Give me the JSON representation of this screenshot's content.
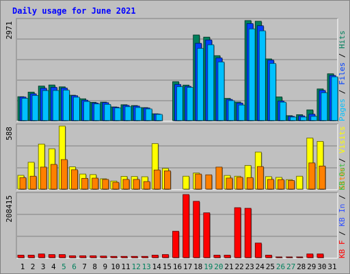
{
  "title": "Daily usage for June 2021",
  "colors": {
    "background": "#c0c0c0",
    "title": "#0000ff",
    "hits": "#00805c",
    "files": "#0040ff",
    "pages": "#00c0ff",
    "visits": "#ffff00",
    "sites": "#ff8000",
    "kbin": "#40c040",
    "kbout": "#3050ff",
    "kbf": "#ff0000"
  },
  "chart_data": [
    {
      "type": "bar",
      "panel": "hits-files-pages",
      "categories": [
        "1",
        "2",
        "3",
        "4",
        "5",
        "6",
        "7",
        "8",
        "9",
        "10",
        "11",
        "12",
        "13",
        "14",
        "15",
        "16",
        "17",
        "18",
        "19",
        "20",
        "21",
        "22",
        "23",
        "24",
        "25",
        "26",
        "27",
        "28",
        "29",
        "30",
        "31"
      ],
      "weekend_days": [
        "5",
        "6",
        "12",
        "13",
        "19",
        "20",
        "26",
        "27"
      ],
      "ymax_label": "2971",
      "ylim": [
        0,
        2971
      ],
      "legend": [
        {
          "text": "Pages",
          "color": "#00c0ff"
        },
        {
          "text": " / ",
          "color": "#000000"
        },
        {
          "text": "Files",
          "color": "#0040ff"
        },
        {
          "text": " / ",
          "color": "#000000"
        },
        {
          "text": "Hits",
          "color": "#00805c"
        }
      ],
      "series": [
        {
          "name": "Hits",
          "values": [
            709,
            845,
            1025,
            1057,
            1002,
            752,
            647,
            543,
            548,
            406,
            471,
            446,
            385,
            202,
            0,
            1156,
            1054,
            2543,
            2479,
            1928,
            659,
            550,
            2971,
            2951,
            1832,
            703,
            146,
            175,
            318,
            940,
            1390
          ]
        },
        {
          "name": "Files",
          "values": [
            698,
            795,
            960,
            986,
            966,
            739,
            606,
            522,
            532,
            396,
            451,
            430,
            373,
            196,
            0,
            1073,
            1016,
            2296,
            2394,
            1859,
            627,
            521,
            2881,
            2816,
            1795,
            580,
            126,
            139,
            190,
            897,
            1340
          ]
        },
        {
          "name": "Pages",
          "values": [
            660,
            745,
            890,
            893,
            903,
            694,
            566,
            494,
            481,
            374,
            412,
            388,
            346,
            184,
            0,
            1006,
            985,
            2143,
            2251,
            1740,
            592,
            462,
            2723,
            2665,
            1696,
            546,
            104,
            105,
            125,
            826,
            1300
          ]
        }
      ]
    },
    {
      "type": "bar",
      "panel": "visits-sites",
      "categories": [
        "1",
        "2",
        "3",
        "4",
        "5",
        "6",
        "7",
        "8",
        "9",
        "10",
        "11",
        "12",
        "13",
        "14",
        "15",
        "16",
        "17",
        "18",
        "19",
        "20",
        "21",
        "22",
        "23",
        "24",
        "25",
        "26",
        "27",
        "28",
        "29",
        "30",
        "31"
      ],
      "ymax_label": "588",
      "ylim": [
        0,
        588
      ],
      "legend": [
        {
          "text": "Sites",
          "color": "#ff8000"
        },
        {
          "text": " / ",
          "color": "#000000"
        },
        {
          "text": "Visits",
          "color": "#ffff00"
        }
      ],
      "series": [
        {
          "name": "Visits",
          "values": [
            128,
            250,
            420,
            376,
            588,
            207,
            140,
            135,
            96,
            75,
            118,
            117,
            115,
            424,
            193,
            0,
            120,
            150,
            0,
            0,
            127,
            120,
            220,
            345,
            116,
            109,
            88,
            120,
            476,
            445,
            0
          ]
        },
        {
          "name": "Sites",
          "values": [
            107,
            120,
            205,
            230,
            275,
            180,
            100,
            102,
            90,
            63,
            90,
            90,
            70,
            178,
            170,
            0,
            0,
            140,
            133,
            205,
            103,
            110,
            107,
            210,
            90,
            88,
            80,
            0,
            244,
            215,
            0
          ]
        }
      ]
    },
    {
      "type": "bar",
      "panel": "kbf",
      "categories": [
        "1",
        "2",
        "3",
        "4",
        "5",
        "6",
        "7",
        "8",
        "9",
        "10",
        "11",
        "12",
        "13",
        "14",
        "15",
        "16",
        "17",
        "18",
        "19",
        "20",
        "21",
        "22",
        "23",
        "24",
        "25",
        "26",
        "27",
        "28",
        "29",
        "30",
        "31"
      ],
      "ymax_label": "208415",
      "ylim": [
        0,
        208415
      ],
      "legend": [
        {
          "text": "KB F",
          "color": "#ff0000"
        },
        {
          "text": " / ",
          "color": "#000000"
        },
        {
          "text": "KB In",
          "color": "#3050ff"
        },
        {
          "text": " / ",
          "color": "#000000"
        },
        {
          "text": "KB Out",
          "color": "#40c040"
        }
      ],
      "series": [
        {
          "name": "KB F",
          "values": [
            8000,
            8000,
            12000,
            10000,
            10000,
            6000,
            6000,
            6000,
            5000,
            4000,
            4000,
            4000,
            4000,
            8000,
            10000,
            87000,
            208415,
            186000,
            148000,
            8000,
            8000,
            165000,
            163000,
            48000,
            8000,
            2000,
            2000,
            2000,
            12000,
            12000,
            0
          ]
        }
      ]
    }
  ]
}
